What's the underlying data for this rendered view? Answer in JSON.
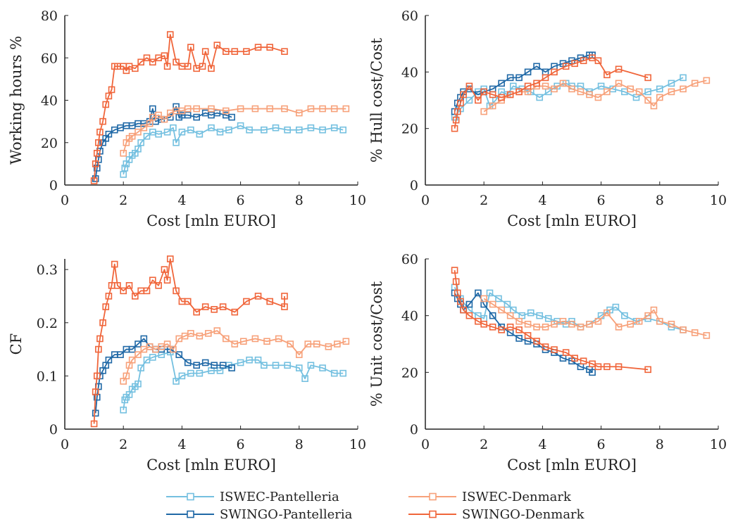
{
  "colors": {
    "ISWEC-Pantelleria": "#74c0e0",
    "SWINGO-Pantelleria": "#1f68a6",
    "ISWEC-Denmark": "#f7a17a",
    "SWINGO-Denmark": "#f0653a",
    "axis": "#222222"
  },
  "legend": {
    "placement": "bottom-center",
    "items": [
      {
        "label": "ISWEC-Pantelleria",
        "series": "ISWEC-Pantelleria"
      },
      {
        "label": "ISWEC-Denmark",
        "series": "ISWEC-Denmark"
      },
      {
        "label": "SWINGO-Pantelleria",
        "series": "SWINGO-Pantelleria"
      },
      {
        "label": "SWINGO-Denmark",
        "series": "SWINGO-Denmark"
      }
    ]
  },
  "chart_data": [
    {
      "type": "line",
      "xlabel": "Cost [mln EURO]",
      "ylabel": "Working hours %",
      "xlim": [
        0,
        10
      ],
      "ylim": [
        0,
        80
      ],
      "xticks": [
        "0",
        "2",
        "4",
        "6",
        "8",
        "10"
      ],
      "yticks": [
        "0",
        "20",
        "40",
        "60",
        "80"
      ],
      "grid": false,
      "series": [
        {
          "name": "ISWEC-Pantelleria",
          "x": [
            2.0,
            2.05,
            2.1,
            2.2,
            2.3,
            2.4,
            2.5,
            2.6,
            2.8,
            3.0,
            3.2,
            3.5,
            3.7,
            3.8,
            4.0,
            4.3,
            4.6,
            5.0,
            5.3,
            5.6,
            6.0,
            6.3,
            6.8,
            7.2,
            7.6,
            8.0,
            8.4,
            8.8,
            9.2,
            9.5
          ],
          "y": [
            5,
            8,
            10,
            12,
            14,
            15,
            17,
            20,
            23,
            25,
            24,
            25,
            27,
            20,
            25,
            26,
            24,
            27,
            25,
            26,
            28,
            26,
            26,
            27,
            26,
            26,
            27,
            26,
            27,
            26
          ]
        },
        {
          "name": "SWINGO-Pantelleria",
          "x": [
            1.05,
            1.1,
            1.15,
            1.2,
            1.3,
            1.4,
            1.5,
            1.7,
            1.9,
            2.1,
            2.3,
            2.5,
            2.7,
            2.9,
            3.0,
            3.1,
            3.3,
            3.6,
            3.8,
            3.9,
            4.0,
            4.2,
            4.5,
            4.8,
            5.0,
            5.2,
            5.5,
            5.7
          ],
          "y": [
            3,
            8,
            12,
            16,
            20,
            22,
            24,
            26,
            27,
            28,
            28,
            29,
            29,
            30,
            36,
            30,
            31,
            32,
            37,
            32,
            33,
            33,
            32,
            34,
            33,
            34,
            33,
            32
          ]
        },
        {
          "name": "ISWEC-Denmark",
          "x": [
            2.0,
            2.1,
            2.2,
            2.3,
            2.5,
            2.7,
            2.9,
            3.0,
            3.2,
            3.4,
            3.6,
            3.8,
            4.0,
            4.2,
            4.5,
            5.0,
            5.5,
            6.0,
            6.5,
            7.0,
            7.5,
            8.0,
            8.4,
            8.8,
            9.2,
            9.6
          ],
          "y": [
            15,
            20,
            22,
            23,
            25,
            27,
            29,
            32,
            33,
            31,
            34,
            35,
            35,
            36,
            36,
            36,
            35,
            36,
            36,
            36,
            36,
            34,
            36,
            36,
            36,
            36
          ]
        },
        {
          "name": "SWINGO-Denmark",
          "x": [
            1.0,
            1.05,
            1.1,
            1.15,
            1.2,
            1.3,
            1.4,
            1.5,
            1.6,
            1.7,
            1.8,
            2.0,
            2.1,
            2.2,
            2.4,
            2.6,
            2.8,
            3.0,
            3.2,
            3.4,
            3.5,
            3.6,
            3.8,
            4.0,
            4.2,
            4.3,
            4.5,
            4.7,
            4.8,
            5.0,
            5.2,
            5.5,
            5.8,
            6.2,
            6.6,
            7.0,
            7.5
          ],
          "y": [
            2,
            10,
            15,
            20,
            25,
            30,
            38,
            42,
            45,
            56,
            56,
            56,
            54,
            56,
            55,
            58,
            60,
            58,
            60,
            61,
            56,
            71,
            58,
            56,
            56,
            65,
            55,
            56,
            63,
            55,
            66,
            63,
            63,
            63,
            65,
            65,
            63
          ]
        }
      ]
    },
    {
      "type": "line",
      "xlabel": "Cost [mln EURO]",
      "ylabel": "% Hull cost/Cost",
      "xlim": [
        0,
        10
      ],
      "ylim": [
        0,
        60
      ],
      "xticks": [
        "0",
        "2",
        "4",
        "6",
        "8",
        "10"
      ],
      "yticks": [
        "0",
        "20",
        "40",
        "60"
      ],
      "grid": false,
      "series": [
        {
          "name": "ISWEC-Pantelleria",
          "x": [
            1.0,
            1.2,
            1.5,
            1.8,
            2.0,
            2.2,
            2.4,
            2.6,
            2.8,
            3.0,
            3.3,
            3.6,
            3.9,
            4.2,
            4.5,
            4.8,
            5.0,
            5.3,
            5.6,
            6.0,
            6.4,
            6.8,
            7.2,
            7.6,
            8.0,
            8.4,
            8.8
          ],
          "y": [
            24,
            27,
            30,
            33,
            34,
            28,
            30,
            33,
            32,
            35,
            34,
            33,
            31,
            33,
            35,
            36,
            35,
            35,
            33,
            35,
            34,
            33,
            31,
            33,
            34,
            36,
            38
          ]
        },
        {
          "name": "SWINGO-Pantelleria",
          "x": [
            1.0,
            1.1,
            1.2,
            1.3,
            1.5,
            1.8,
            2.0,
            2.3,
            2.6,
            2.9,
            3.2,
            3.5,
            3.8,
            4.1,
            4.4,
            4.7,
            5.0,
            5.3,
            5.6,
            5.7
          ],
          "y": [
            26,
            29,
            31,
            33,
            34,
            32,
            33,
            34,
            36,
            38,
            38,
            40,
            42,
            40,
            42,
            43,
            44,
            45,
            46,
            46
          ]
        },
        {
          "name": "ISWEC-Denmark",
          "x": [
            2.0,
            2.3,
            2.6,
            2.9,
            3.2,
            3.5,
            3.8,
            4.1,
            4.4,
            4.7,
            5.0,
            5.3,
            5.6,
            5.9,
            6.2,
            6.6,
            7.0,
            7.3,
            7.6,
            7.8,
            8.0,
            8.4,
            8.8,
            9.2,
            9.6
          ],
          "y": [
            26,
            28,
            30,
            32,
            33,
            33,
            35,
            35,
            34,
            36,
            34,
            33,
            32,
            31,
            33,
            36,
            34,
            33,
            30,
            28,
            31,
            33,
            34,
            36,
            37
          ]
        },
        {
          "name": "SWINGO-Denmark",
          "x": [
            1.0,
            1.05,
            1.1,
            1.2,
            1.3,
            1.5,
            1.8,
            2.0,
            2.3,
            2.6,
            2.9,
            3.2,
            3.5,
            3.8,
            4.1,
            4.4,
            4.8,
            5.1,
            5.4,
            5.7,
            5.9,
            6.2,
            6.6,
            7.6
          ],
          "y": [
            20,
            23,
            26,
            29,
            32,
            35,
            30,
            33,
            32,
            31,
            32,
            33,
            35,
            36,
            38,
            40,
            42,
            43,
            44,
            45,
            44,
            39,
            41,
            38
          ]
        }
      ]
    },
    {
      "type": "line",
      "xlabel": "Cost [mln EURO]",
      "ylabel": "CF",
      "xlim": [
        0,
        10
      ],
      "ylim": [
        0,
        0.32
      ],
      "xticks": [
        "0",
        "2",
        "4",
        "6",
        "8",
        "10"
      ],
      "yticks": [
        "0",
        "0.1",
        "0.2",
        "0.3"
      ],
      "grid": false,
      "series": [
        {
          "name": "ISWEC-Pantelleria",
          "x": [
            2.0,
            2.05,
            2.1,
            2.2,
            2.3,
            2.4,
            2.5,
            2.6,
            2.8,
            3.0,
            3.3,
            3.6,
            3.8,
            4.0,
            4.3,
            4.6,
            5.0,
            5.3,
            5.6,
            6.0,
            6.3,
            6.6,
            6.8,
            7.2,
            7.6,
            8.0,
            8.2,
            8.4,
            8.8,
            9.2,
            9.5
          ],
          "y": [
            0.036,
            0.055,
            0.06,
            0.065,
            0.075,
            0.08,
            0.085,
            0.115,
            0.13,
            0.135,
            0.14,
            0.145,
            0.09,
            0.1,
            0.105,
            0.105,
            0.11,
            0.11,
            0.12,
            0.125,
            0.13,
            0.13,
            0.12,
            0.12,
            0.12,
            0.115,
            0.095,
            0.12,
            0.115,
            0.105,
            0.105
          ]
        },
        {
          "name": "SWINGO-Pantelleria",
          "x": [
            1.05,
            1.1,
            1.15,
            1.2,
            1.3,
            1.4,
            1.5,
            1.7,
            1.9,
            2.1,
            2.3,
            2.5,
            2.7,
            2.9,
            3.1,
            3.3,
            3.6,
            3.9,
            4.2,
            4.5,
            4.8,
            5.1,
            5.4,
            5.7
          ],
          "y": [
            0.03,
            0.06,
            0.08,
            0.1,
            0.11,
            0.12,
            0.13,
            0.14,
            0.14,
            0.15,
            0.15,
            0.16,
            0.17,
            0.155,
            0.15,
            0.15,
            0.15,
            0.14,
            0.125,
            0.12,
            0.125,
            0.12,
            0.12,
            0.115
          ]
        },
        {
          "name": "ISWEC-Denmark",
          "x": [
            2.0,
            2.1,
            2.2,
            2.3,
            2.5,
            2.7,
            2.9,
            3.1,
            3.3,
            3.5,
            3.7,
            3.9,
            4.1,
            4.3,
            4.6,
            4.9,
            5.2,
            5.5,
            5.8,
            6.1,
            6.5,
            6.9,
            7.3,
            7.7,
            8.0,
            8.3,
            8.6,
            9.0,
            9.3,
            9.6
          ],
          "y": [
            0.09,
            0.1,
            0.12,
            0.13,
            0.14,
            0.15,
            0.155,
            0.15,
            0.155,
            0.16,
            0.15,
            0.17,
            0.175,
            0.18,
            0.175,
            0.18,
            0.185,
            0.17,
            0.16,
            0.165,
            0.17,
            0.165,
            0.17,
            0.16,
            0.14,
            0.16,
            0.16,
            0.155,
            0.16,
            0.165
          ]
        },
        {
          "name": "SWINGO-Denmark",
          "x": [
            1.0,
            1.05,
            1.1,
            1.15,
            1.2,
            1.3,
            1.4,
            1.5,
            1.6,
            1.7,
            1.8,
            2.0,
            2.2,
            2.4,
            2.6,
            2.8,
            3.0,
            3.2,
            3.4,
            3.5,
            3.6,
            3.8,
            4.0,
            4.2,
            4.5,
            4.8,
            5.1,
            5.4,
            5.8,
            6.2,
            6.6,
            7.0,
            7.5,
            7.5
          ],
          "y": [
            0.01,
            0.07,
            0.1,
            0.15,
            0.17,
            0.2,
            0.23,
            0.25,
            0.27,
            0.31,
            0.27,
            0.26,
            0.27,
            0.25,
            0.26,
            0.26,
            0.28,
            0.27,
            0.3,
            0.28,
            0.32,
            0.26,
            0.24,
            0.24,
            0.22,
            0.23,
            0.225,
            0.23,
            0.22,
            0.24,
            0.25,
            0.24,
            0.23,
            0.25
          ]
        }
      ]
    },
    {
      "type": "line",
      "xlabel": "Cost [mln EURO]",
      "ylabel": "% Unit cost/Cost",
      "xlim": [
        0,
        10
      ],
      "ylim": [
        0,
        60
      ],
      "xticks": [
        "0",
        "2",
        "4",
        "6",
        "8",
        "10"
      ],
      "yticks": [
        "0",
        "20",
        "40",
        "60"
      ],
      "grid": false,
      "series": [
        {
          "name": "ISWEC-Pantelleria",
          "x": [
            1.0,
            1.2,
            1.5,
            1.8,
            2.0,
            2.2,
            2.5,
            2.8,
            3.0,
            3.3,
            3.6,
            3.9,
            4.2,
            4.5,
            4.8,
            5.0,
            5.3,
            5.6,
            6.0,
            6.3,
            6.5,
            6.8,
            7.2,
            7.6,
            8.0,
            8.4,
            8.8
          ],
          "y": [
            50,
            46,
            42,
            40,
            39,
            48,
            46,
            44,
            42,
            40,
            41,
            40,
            39,
            38,
            37,
            38,
            36,
            37,
            40,
            42,
            43,
            40,
            38,
            39,
            38,
            36,
            35
          ]
        },
        {
          "name": "SWINGO-Pantelleria",
          "x": [
            1.0,
            1.1,
            1.2,
            1.3,
            1.5,
            1.8,
            2.0,
            2.3,
            2.6,
            2.9,
            3.2,
            3.5,
            3.8,
            4.1,
            4.4,
            4.7,
            5.0,
            5.3,
            5.6,
            5.7
          ],
          "y": [
            48,
            46,
            44,
            42,
            44,
            48,
            44,
            40,
            36,
            34,
            32,
            31,
            30,
            28,
            27,
            25,
            24,
            22,
            21,
            20
          ]
        },
        {
          "name": "ISWEC-Denmark",
          "x": [
            2.0,
            2.3,
            2.6,
            2.9,
            3.2,
            3.5,
            3.8,
            4.1,
            4.4,
            4.7,
            5.0,
            5.3,
            5.6,
            5.9,
            6.2,
            6.6,
            7.0,
            7.3,
            7.6,
            7.8,
            8.0,
            8.4,
            8.8,
            9.2,
            9.6
          ],
          "y": [
            46,
            44,
            42,
            40,
            38,
            37,
            36,
            36,
            37,
            38,
            37,
            36,
            37,
            38,
            41,
            36,
            37,
            38,
            40,
            42,
            38,
            37,
            35,
            34,
            33
          ]
        },
        {
          "name": "SWINGO-Denmark",
          "x": [
            1.0,
            1.05,
            1.1,
            1.2,
            1.3,
            1.5,
            1.8,
            2.0,
            2.3,
            2.6,
            2.9,
            3.2,
            3.5,
            3.8,
            4.1,
            4.4,
            4.8,
            5.1,
            5.4,
            5.7,
            5.9,
            6.2,
            6.6,
            7.6
          ],
          "y": [
            56,
            52,
            48,
            45,
            42,
            40,
            38,
            37,
            36,
            35,
            36,
            35,
            33,
            31,
            29,
            28,
            27,
            25,
            24,
            23,
            22,
            22,
            22,
            21
          ]
        }
      ]
    }
  ]
}
